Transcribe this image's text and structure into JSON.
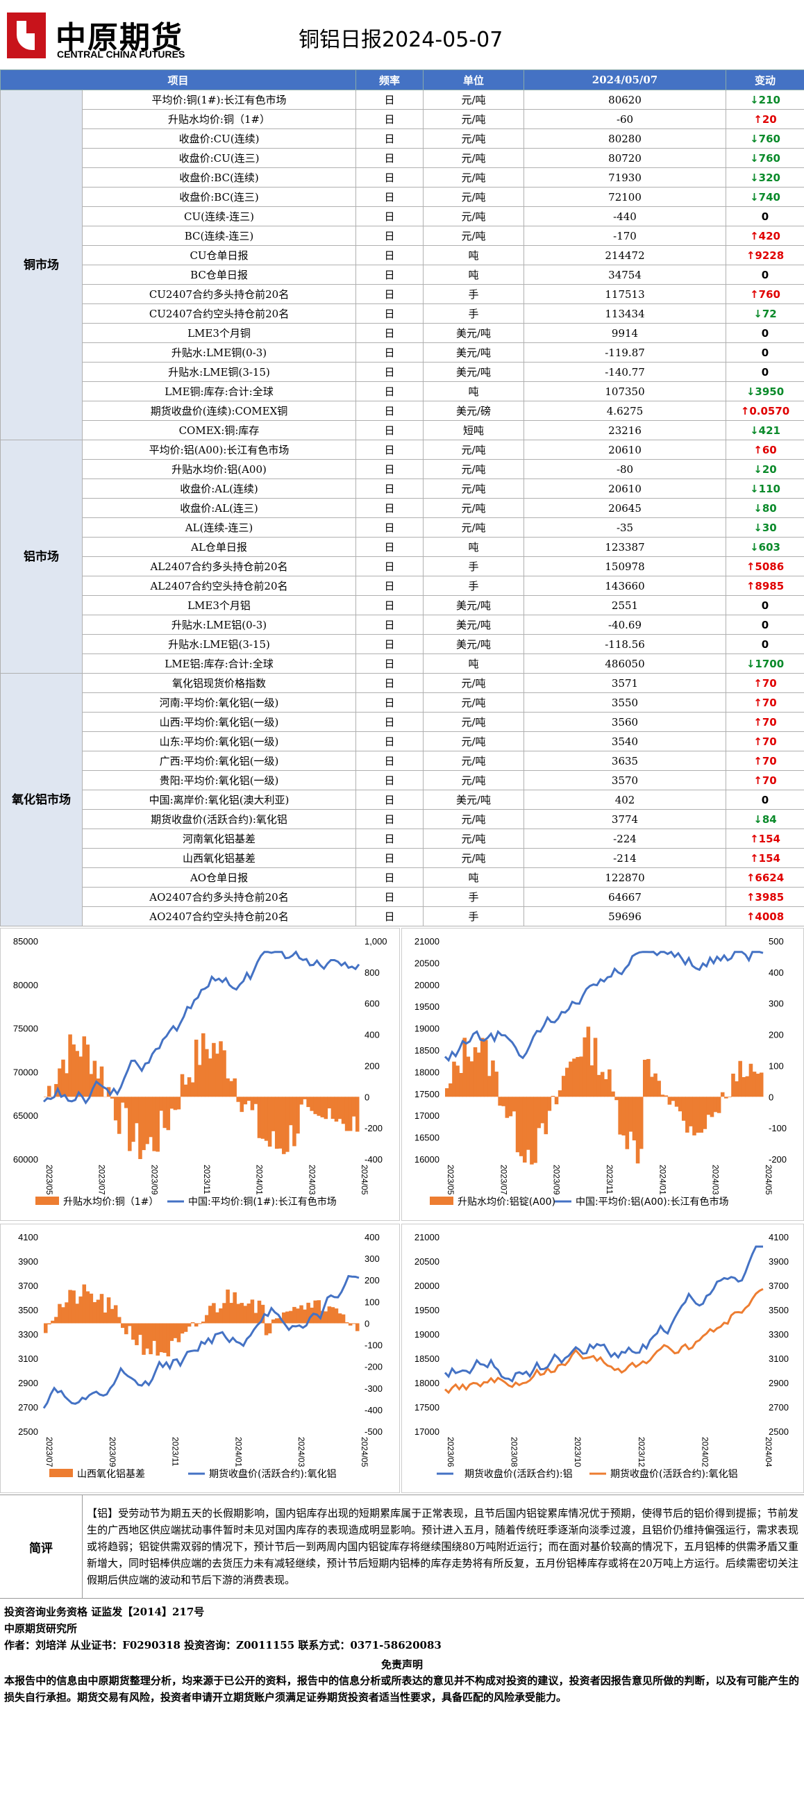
{
  "header": {
    "logo_cn": "中原期货",
    "logo_en": "CENTRAL CHINA FUTURES",
    "title": "铜铝日报2024-05-07"
  },
  "table": {
    "headers": [
      "项目",
      "频率",
      "单位",
      "2024/05/07",
      "变动"
    ],
    "sections": [
      {
        "name": "铜市场",
        "rows": [
          [
            "平均价:铜(1#):长江有色市场",
            "日",
            "元/吨",
            "80620",
            "down",
            "210"
          ],
          [
            "升贴水均价:铜（1#）",
            "日",
            "元/吨",
            "-60",
            "up",
            "20"
          ],
          [
            "收盘价:CU(连续)",
            "日",
            "元/吨",
            "80280",
            "down",
            "760"
          ],
          [
            "收盘价:CU(连三)",
            "日",
            "元/吨",
            "80720",
            "down",
            "760"
          ],
          [
            "收盘价:BC(连续)",
            "日",
            "元/吨",
            "71930",
            "down",
            "320"
          ],
          [
            "收盘价:BC(连三)",
            "日",
            "元/吨",
            "72100",
            "down",
            "740"
          ],
          [
            "CU(连续-连三)",
            "日",
            "元/吨",
            "-440",
            "zero",
            "0"
          ],
          [
            "BC(连续-连三)",
            "日",
            "元/吨",
            "-170",
            "up",
            "420"
          ],
          [
            "CU仓单日报",
            "日",
            "吨",
            "214472",
            "up",
            "9228"
          ],
          [
            "BC仓单日报",
            "日",
            "吨",
            "34754",
            "zero",
            "0"
          ],
          [
            "CU2407合约多头持仓前20名",
            "日",
            "手",
            "117513",
            "up",
            "760"
          ],
          [
            "CU2407合约空头持仓前20名",
            "日",
            "手",
            "113434",
            "down",
            "72"
          ],
          [
            "LME3个月铜",
            "日",
            "美元/吨",
            "9914",
            "zero",
            "0"
          ],
          [
            "升贴水:LME铜(0-3)",
            "日",
            "美元/吨",
            "-119.87",
            "zero",
            "0"
          ],
          [
            "升贴水:LME铜(3-15)",
            "日",
            "美元/吨",
            "-140.77",
            "zero",
            "0"
          ],
          [
            "LME铜:库存:合计:全球",
            "日",
            "吨",
            "107350",
            "down",
            "3950"
          ],
          [
            "期货收盘价(连续):COMEX铜",
            "日",
            "美元/磅",
            "4.6275",
            "up",
            "0.0570"
          ],
          [
            "COMEX:铜:库存",
            "日",
            "短吨",
            "23216",
            "down",
            "421"
          ]
        ]
      },
      {
        "name": "铝市场",
        "rows": [
          [
            "平均价:铝(A00):长江有色市场",
            "日",
            "元/吨",
            "20610",
            "up",
            "60"
          ],
          [
            "升贴水均价:铝(A00)",
            "日",
            "元/吨",
            "-80",
            "down",
            "20"
          ],
          [
            "收盘价:AL(连续)",
            "日",
            "元/吨",
            "20610",
            "down",
            "110"
          ],
          [
            "收盘价:AL(连三)",
            "日",
            "元/吨",
            "20645",
            "down",
            "80"
          ],
          [
            "AL(连续-连三)",
            "日",
            "元/吨",
            "-35",
            "down",
            "30"
          ],
          [
            "AL仓单日报",
            "日",
            "吨",
            "123387",
            "down",
            "603"
          ],
          [
            "AL2407合约多头持仓前20名",
            "日",
            "手",
            "150978",
            "up",
            "5086"
          ],
          [
            "AL2407合约空头持仓前20名",
            "日",
            "手",
            "143660",
            "up",
            "8985"
          ],
          [
            "LME3个月铝",
            "日",
            "美元/吨",
            "2551",
            "zero",
            "0"
          ],
          [
            "升贴水:LME铝(0-3)",
            "日",
            "美元/吨",
            "-40.69",
            "zero",
            "0"
          ],
          [
            "升贴水:LME铝(3-15)",
            "日",
            "美元/吨",
            "-118.56",
            "zero",
            "0"
          ],
          [
            "LME铝:库存:合计:全球",
            "日",
            "吨",
            "486050",
            "down",
            "1700"
          ]
        ]
      },
      {
        "name": "氧化铝市场",
        "rows": [
          [
            "氧化铝现货价格指数",
            "日",
            "元/吨",
            "3571",
            "up",
            "70"
          ],
          [
            "河南:平均价:氧化铝(一级)",
            "日",
            "元/吨",
            "3550",
            "up",
            "70"
          ],
          [
            "山西:平均价:氧化铝(一级)",
            "日",
            "元/吨",
            "3560",
            "up",
            "70"
          ],
          [
            "山东:平均价:氧化铝(一级)",
            "日",
            "元/吨",
            "3540",
            "up",
            "70"
          ],
          [
            "广西:平均价:氧化铝(一级)",
            "日",
            "元/吨",
            "3635",
            "up",
            "70"
          ],
          [
            "贵阳:平均价:氧化铝(一级)",
            "日",
            "元/吨",
            "3570",
            "up",
            "70"
          ],
          [
            "中国:离岸价:氧化铝(澳大利亚)",
            "日",
            "美元/吨",
            "402",
            "zero",
            "0"
          ],
          [
            "期货收盘价(活跃合约):氧化铝",
            "日",
            "元/吨",
            "3774",
            "down",
            "84"
          ],
          [
            "河南氧化铝基差",
            "日",
            "元/吨",
            "-224",
            "up",
            "154"
          ],
          [
            "山西氧化铝基差",
            "日",
            "元/吨",
            "-214",
            "up",
            "154"
          ],
          [
            "AO仓单日报",
            "日",
            "吨",
            "122870",
            "up",
            "6624"
          ],
          [
            "AO2407合约多头持仓前20名",
            "日",
            "手",
            "64667",
            "up",
            "3985"
          ],
          [
            "AO2407合约空头持仓前20名",
            "日",
            "手",
            "59696",
            "up",
            "4008"
          ]
        ]
      }
    ]
  },
  "charts": {
    "c1": {
      "left_ticks": [
        "85000",
        "80000",
        "75000",
        "70000",
        "65000",
        "60000"
      ],
      "right_ticks": [
        "1,000",
        "800",
        "600",
        "400",
        "200",
        "0",
        "-200",
        "-400"
      ],
      "x_ticks": [
        "2023/05",
        "2023/07",
        "2023/09",
        "2023/11",
        "2024/01",
        "2024/03",
        "2024/05"
      ],
      "legend": [
        "升贴水均价:铜（1#）",
        "中国:平均价:铜(1#):长江有色市场"
      ]
    },
    "c2": {
      "left_ticks": [
        "21000",
        "20500",
        "20000",
        "19500",
        "19000",
        "18500",
        "18000",
        "17500",
        "17000",
        "16500",
        "16000"
      ],
      "right_ticks": [
        "500",
        "400",
        "300",
        "200",
        "100",
        "0",
        "-100",
        "-200"
      ],
      "x_ticks": [
        "2023/05",
        "2023/07",
        "2023/09",
        "2023/11",
        "2024/01",
        "2024/03",
        "2024/05"
      ],
      "legend": [
        "升贴水均价:铝锭(A00)",
        "中国:平均价:铝(A00):长江有色市场"
      ]
    },
    "c3": {
      "left_ticks": [
        "4100",
        "3900",
        "3700",
        "3500",
        "3300",
        "3100",
        "2900",
        "2700",
        "2500"
      ],
      "right_ticks": [
        "400",
        "300",
        "200",
        "100",
        "0",
        "-100",
        "-200",
        "-300",
        "-400",
        "-500"
      ],
      "x_ticks": [
        "2023/07",
        "2023/09",
        "2023/11",
        "2024/01",
        "2024/03",
        "2024/05"
      ],
      "legend": [
        "山西氧化铝基差",
        "期货收盘价(活跃合约):氧化铝"
      ]
    },
    "c4": {
      "left_ticks": [
        "21000",
        "20500",
        "20000",
        "19500",
        "19000",
        "18500",
        "18000",
        "17500",
        "17000"
      ],
      "right_ticks": [
        "4100",
        "3900",
        "3700",
        "3500",
        "3300",
        "3100",
        "2900",
        "2700",
        "2500"
      ],
      "x_ticks": [
        "2023/06",
        "2023/08",
        "2023/10",
        "2023/12",
        "2024/02",
        "2024/04"
      ],
      "legend": [
        "期货收盘价(活跃合约):铝",
        "期货收盘价(活跃合约):氧化铝"
      ]
    },
    "colors": {
      "bar": "#ed7d31",
      "line": "#4472c4",
      "line2": "#ed7d31"
    }
  },
  "summary": {
    "label": "简评",
    "text": "【铝】受劳动节为期五天的长假期影响，国内铝库存出现的短期累库属于正常表现，且节后国内铝锭累库情况优于预期，使得节后的铝价得到提振；节前发生的广西地区供应端扰动事件暂时未见对国内库存的表现造成明显影响。预计进入五月，随着传统旺季逐渐向淡季过渡，且铝价仍维持偏强运行，需求表现或将趋弱；铝锭供需双弱的情况下，预计节后一到两周内国内铝锭库存将继续围绕80万吨附近运行；而在面对基价较高的情况下，五月铝棒的供需矛盾又重新增大，同时铝棒供应端的去货压力未有减轻继续，预计节后短期内铝棒的库存走势将有所反复，五月份铝棒库存或将在20万吨上方运行。后续需密切关注假期后供应端的波动和节后下游的消费表现。"
  },
  "footer": {
    "line1": "投资咨询业务资格  证监发【2014】217号",
    "line2": "中原期货研究所",
    "line3": "作者：刘培洋    从业证书：F0290318    投资咨询：Z0011155    联系方式：0371-58620083",
    "disc_title": "免责声明",
    "disc": "本报告中的信息由中原期货整理分析，均来源于已公开的资料，报告中的信息分析或所表达的意见并不构成对投资的建议，投资者因报告意见所做的判断，以及有可能产生的损失自行承担。期货交易有风险，投资者申请开立期货账户须满足证券期货投资者适当性要求，具备匹配的风险承受能力。"
  }
}
